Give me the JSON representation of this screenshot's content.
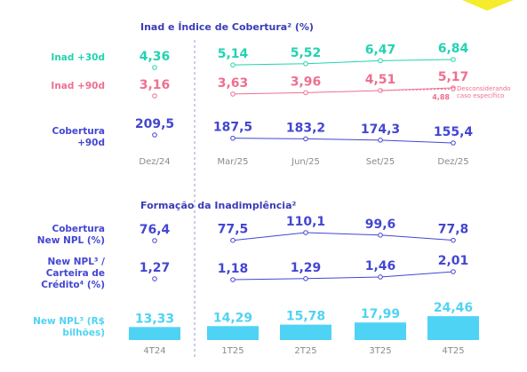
{
  "chart_data": [
    {
      "type": "line",
      "title": "Inad e Índice de Cobertura² (%)",
      "categories": [
        "Dez/24",
        "Mar/25",
        "Jun/25",
        "Set/25",
        "Dez/25"
      ],
      "series": [
        {
          "name": "Inad +30d",
          "color": "#22d3b0",
          "values": [
            4.36,
            5.14,
            5.52,
            6.47,
            6.84
          ],
          "value_labels": [
            "4,36",
            "5,14",
            "5,52",
            "6,47",
            "6,84"
          ]
        },
        {
          "name": "Inad +90d",
          "color": "#ee6f8f",
          "values": [
            3.16,
            3.63,
            3.96,
            4.51,
            5.17
          ],
          "value_labels": [
            "3,16",
            "3,63",
            "3,96",
            "4,51",
            "5,17"
          ],
          "annotation": {
            "text": "Desconsiderando caso específico",
            "value": 4.88,
            "label": "4,88"
          }
        },
        {
          "name": "Cobertura +90d",
          "color": "#4346d2",
          "values": [
            209.5,
            187.5,
            183.2,
            174.3,
            155.4
          ],
          "value_labels": [
            "209,5",
            "187,5",
            "183,2",
            "174,3",
            "155,4"
          ]
        }
      ]
    },
    {
      "type": "mixed",
      "title": "Formação da Inadimplência²",
      "categories": [
        "4T24",
        "1T25",
        "2T25",
        "3T25",
        "4T25"
      ],
      "series": [
        {
          "name": "Cobertura New NPL (%)",
          "type": "line",
          "color": "#4346d2",
          "values": [
            76.4,
            77.5,
            110.1,
            99.6,
            77.8
          ],
          "value_labels": [
            "76,4",
            "77,5",
            "110,1",
            "99,6",
            "77,8"
          ]
        },
        {
          "name": "New NPL³ / Carteira de Crédito⁴ (%)",
          "type": "line",
          "color": "#4346d2",
          "values": [
            1.27,
            1.18,
            1.29,
            1.46,
            2.01
          ],
          "value_labels": [
            "1,27",
            "1,18",
            "1,29",
            "1,46",
            "2,01"
          ]
        },
        {
          "name": "New NPL³ (R$ bilhões)",
          "type": "bar",
          "color": "#4fd3f4",
          "values": [
            13.33,
            14.29,
            15.78,
            17.99,
            24.46
          ],
          "value_labels": [
            "13,33",
            "14,29",
            "15,78",
            "17,99",
            "24,46"
          ]
        }
      ]
    }
  ]
}
